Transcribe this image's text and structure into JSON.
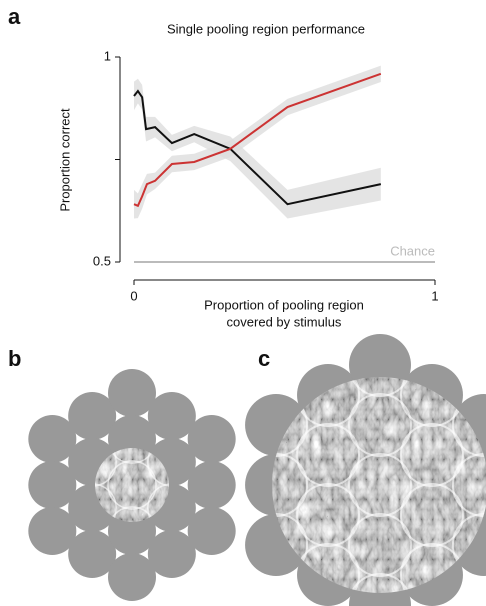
{
  "chart_data": {
    "type": "line",
    "panel_labels": [
      "a",
      "b",
      "c"
    ],
    "title": "Single pooling region performance",
    "ylabel": "Proportion correct",
    "xlabel": [
      "Proportion of pooling region",
      "covered by stimulus"
    ],
    "xlim": [
      0,
      1
    ],
    "xticks": [
      0,
      1
    ],
    "ylim": [
      0.5,
      1
    ],
    "yticks": [
      0.5,
      1
    ],
    "yminorticks": [
      0.75
    ],
    "band_color": "#dddddd",
    "series": [
      {
        "color": "#111111",
        "x": [
          0,
          0.013,
          0.027,
          0.04,
          0.07,
          0.126,
          0.2,
          0.32,
          0.51,
          0.82
        ],
        "values": [
          0.905,
          0.917,
          0.902,
          0.824,
          0.829,
          0.79,
          0.812,
          0.776,
          0.641,
          0.69
        ],
        "errors": [
          0.035,
          0.03,
          0.03,
          0.03,
          0.025,
          0.02,
          0.02,
          0.03,
          0.035,
          0.04
        ]
      },
      {
        "color": "#cc3333",
        "x": [
          0,
          0.013,
          0.027,
          0.043,
          0.07,
          0.126,
          0.2,
          0.32,
          0.51,
          0.82
        ],
        "values": [
          0.641,
          0.637,
          0.66,
          0.69,
          0.698,
          0.739,
          0.744,
          0.776,
          0.878,
          0.959
        ],
        "errors": [
          0.035,
          0.03,
          0.03,
          0.025,
          0.02,
          0.02,
          0.02,
          0.02,
          0.02,
          0.02
        ]
      }
    ],
    "chance": {
      "label": "Chance",
      "value": 0.5,
      "color": "#bbbbbb"
    }
  }
}
